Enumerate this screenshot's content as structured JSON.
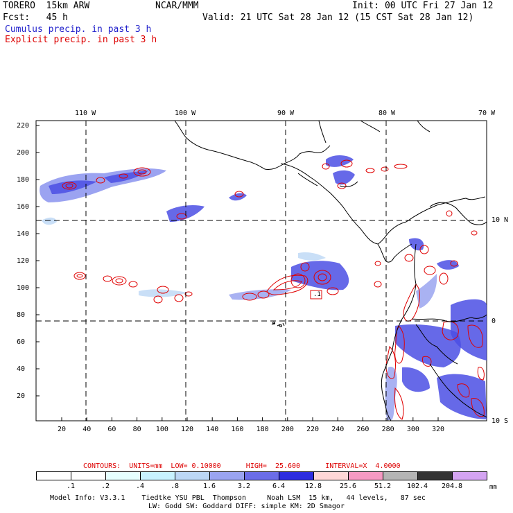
{
  "header": {
    "model_name": "TORERO  15km ARW",
    "org": "NCAR/MMM",
    "init": "Init: 00 UTC Fri 27 Jan 12",
    "fcst": "Fcst:   45 h",
    "valid": "Valid: 21 UTC Sat 28 Jan 12 (15 CST Sat 28 Jan 12)",
    "field1": "Cumulus precip. in past 3 h",
    "field2": "Explicit precip. in past 3 h",
    "field1_color": "#2222cc",
    "field2_color": "#dd0000"
  },
  "axes": {
    "top_labels": [
      "110 W",
      "100 W",
      "90 W",
      "80 W",
      "70 W"
    ],
    "right_labels": [
      "10 N",
      "0",
      "10 S"
    ],
    "left_ticks": [
      "220",
      "200",
      "180",
      "160",
      "140",
      "120",
      "100",
      "80",
      "60",
      "40",
      "20"
    ],
    "bottom_ticks": [
      "20",
      "40",
      "60",
      "80",
      "100",
      "120",
      "140",
      "160",
      "180",
      "200",
      "220",
      "240",
      "260",
      "280",
      "300",
      "320"
    ]
  },
  "map_label": ".1",
  "contours": "CONTOURS:  UNITS=mm  LOW= 0.10000      HIGH=  25.600      INTERVAL=X  4.0000",
  "colorbar": {
    "unit": "mm",
    "labels": [
      ".1",
      ".2",
      ".4",
      ".8",
      "1.6",
      "3.2",
      "6.4",
      "12.8",
      "25.6",
      "51.2",
      "102.4",
      "204.8"
    ],
    "colors": [
      "#ffffff",
      "#ffffff",
      "#e6ffff",
      "#c8f2ff",
      "#bcd7f5",
      "#9aa4f0",
      "#6b6de8",
      "#2d2de0",
      "#ffd7d7",
      "#f59ac3",
      "#b5b5b5",
      "#333333",
      "#d4a4f2"
    ]
  },
  "footer": {
    "line1": "Model Info: V3.3.1    Tiedtke YSU PBL  Thompson     Noah LSM  15 km,   44 levels,   87 sec",
    "line2": "LW: Godd SW: Goddard DIFF: simple KM: 2D Smagor"
  }
}
